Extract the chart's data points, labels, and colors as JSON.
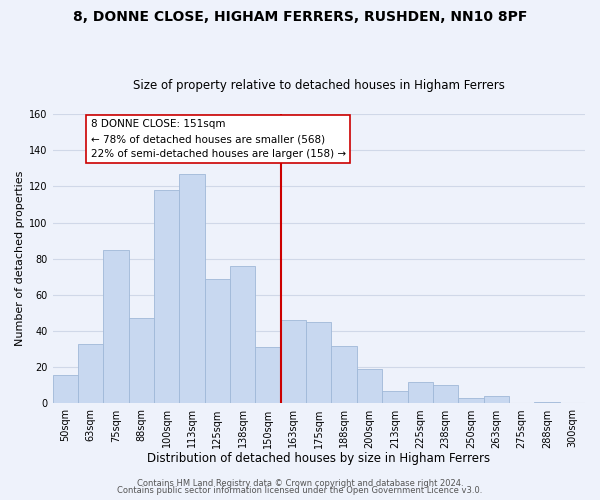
{
  "title": "8, DONNE CLOSE, HIGHAM FERRERS, RUSHDEN, NN10 8PF",
  "subtitle": "Size of property relative to detached houses in Higham Ferrers",
  "xlabel": "Distribution of detached houses by size in Higham Ferrers",
  "ylabel": "Number of detached properties",
  "bin_labels": [
    "50sqm",
    "63sqm",
    "75sqm",
    "88sqm",
    "100sqm",
    "113sqm",
    "125sqm",
    "138sqm",
    "150sqm",
    "163sqm",
    "175sqm",
    "188sqm",
    "200sqm",
    "213sqm",
    "225sqm",
    "238sqm",
    "250sqm",
    "263sqm",
    "275sqm",
    "288sqm",
    "300sqm"
  ],
  "bar_heights": [
    16,
    33,
    85,
    47,
    118,
    127,
    69,
    76,
    31,
    46,
    45,
    32,
    19,
    7,
    12,
    10,
    3,
    4,
    0,
    1,
    0
  ],
  "bar_color": "#c8d8f0",
  "bar_edge_color": "#a0b8d8",
  "vline_color": "#cc0000",
  "annotation_text": "8 DONNE CLOSE: 151sqm\n← 78% of detached houses are smaller (568)\n22% of semi-detached houses are larger (158) →",
  "annotation_box_color": "#ffffff",
  "annotation_box_edge": "#cc0000",
  "ylim": [
    0,
    160
  ],
  "footer1": "Contains HM Land Registry data © Crown copyright and database right 2024.",
  "footer2": "Contains public sector information licensed under the Open Government Licence v3.0.",
  "background_color": "#eef2fb",
  "grid_color": "#d0d8e8",
  "title_fontsize": 10,
  "subtitle_fontsize": 8.5,
  "xlabel_fontsize": 8.5,
  "ylabel_fontsize": 8,
  "tick_fontsize": 7,
  "footer_fontsize": 6,
  "annotation_fontsize": 7.5
}
